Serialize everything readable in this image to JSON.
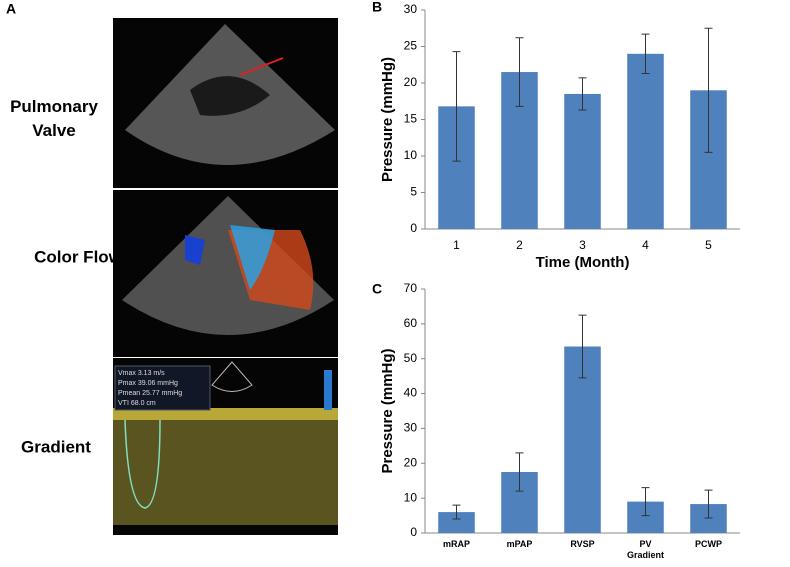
{
  "panel_a": {
    "label": "A",
    "rows": [
      "Pulmonary Valve",
      "Color Flow",
      "Gradient"
    ],
    "measurements": [
      "Vmax 3.13 m/s",
      "Pmax 39.06 mmHg",
      "Pmean 25.77 mmHg",
      "VTI 68.0 cm"
    ]
  },
  "chart_data": [
    {
      "type": "bar",
      "panel": "B",
      "xlabel": "Time (Month)",
      "ylabel": "Pressure (mmHg)",
      "categories": [
        "1",
        "2",
        "3",
        "4",
        "5"
      ],
      "values": [
        16.8,
        21.5,
        18.5,
        24,
        19
      ],
      "errors": [
        7.5,
        4.7,
        2.2,
        2.7,
        8.5
      ],
      "color": "#4f81bd",
      "ylim": [
        0,
        30
      ],
      "yticks": [
        0,
        5,
        10,
        15,
        20,
        25,
        30
      ]
    },
    {
      "type": "bar",
      "panel": "C",
      "ylabel": "Pressure (mmHg)",
      "categories": [
        "mRAP",
        "mPAP",
        "RVSP",
        "PV Gradient",
        "PCWP"
      ],
      "values": [
        6,
        17.5,
        53.5,
        9,
        8.3
      ],
      "errors": [
        2,
        5.5,
        9,
        4,
        4
      ],
      "color": "#4f81bd",
      "ylim": [
        0,
        70
      ],
      "yticks": [
        0,
        10,
        20,
        30,
        40,
        50,
        60,
        70
      ]
    }
  ]
}
